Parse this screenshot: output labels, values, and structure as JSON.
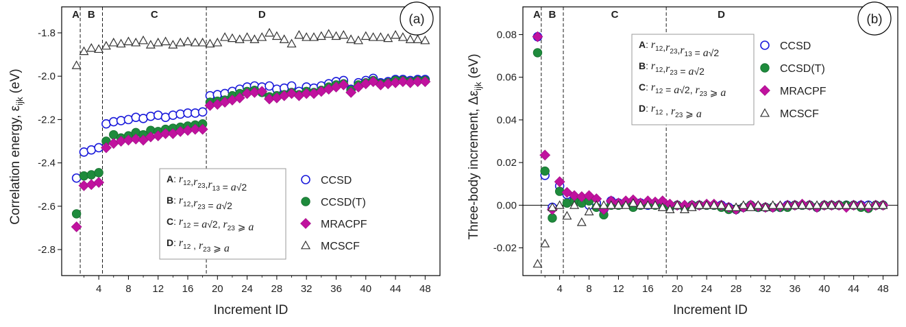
{
  "colors": {
    "CCSD": "#1a1adb",
    "CCSD(T)": "#1e8b3c",
    "MRACPF": "#c0129e",
    "MCSCF": "#333333"
  },
  "chart_data": [
    {
      "type": "scatter",
      "badge": "(a)",
      "xlabel": "Increment ID",
      "ylabel": "Correlation energy, ε",
      "ylabel_sub": "ijk",
      "ylabel_unit": " (eV)",
      "xlim": [
        -1,
        50
      ],
      "ylim": [
        -2.92,
        -1.68
      ],
      "xticks": [
        4,
        8,
        12,
        16,
        20,
        24,
        28,
        32,
        36,
        40,
        44,
        48
      ],
      "yticks": [
        -1.8,
        -2.0,
        -2.2,
        -2.4,
        -2.6,
        -2.8
      ],
      "ytick_labels": [
        "-1.8",
        "-2.0",
        "-2.2",
        "-2.4",
        "-2.6",
        "-2.8"
      ],
      "regions": [
        {
          "label": "A",
          "x": 0.9
        },
        {
          "label": "B",
          "x": 3.0
        },
        {
          "label": "C",
          "x": 11.5
        },
        {
          "label": "D",
          "x": 26.0
        }
      ],
      "dividers": [
        1.5,
        4.5,
        18.5
      ],
      "legend": [
        "CCSD",
        "CCSD(T)",
        "MRACPF",
        "MCSCF"
      ],
      "box_lines": [
        {
          "bold": "A",
          "rest": ": r12,r23,r13 = a√2"
        },
        {
          "bold": "B",
          "rest": ": r12,r23 = a√2"
        },
        {
          "bold": "C",
          "rest": ": r12 = a√2, r23 ⩾ a"
        },
        {
          "bold": "D",
          "rest": ": r12 , r23 ⩾ a"
        }
      ],
      "series": [
        {
          "name": "CCSD",
          "marker": "open-circle",
          "x": [
            1,
            2,
            3,
            4,
            5,
            6,
            7,
            8,
            9,
            10,
            11,
            12,
            13,
            14,
            15,
            16,
            17,
            18,
            19,
            20,
            21,
            22,
            23,
            24,
            25,
            26,
            27,
            28,
            29,
            30,
            31,
            32,
            33,
            34,
            35,
            36,
            37,
            38,
            39,
            40,
            41,
            42,
            43,
            44,
            45,
            46,
            47,
            48
          ],
          "y": [
            -2.47,
            -2.35,
            -2.34,
            -2.33,
            -2.22,
            -2.21,
            -2.205,
            -2.2,
            -2.19,
            -2.195,
            -2.185,
            -2.18,
            -2.19,
            -2.18,
            -2.175,
            -2.17,
            -2.17,
            -2.165,
            -2.09,
            -2.085,
            -2.08,
            -2.07,
            -2.06,
            -2.05,
            -2.045,
            -2.05,
            -2.045,
            -2.06,
            -2.055,
            -2.045,
            -2.07,
            -2.05,
            -2.055,
            -2.045,
            -2.035,
            -2.025,
            -2.02,
            -2.06,
            -2.03,
            -2.02,
            -2.01,
            -2.03,
            -2.025,
            -2.015,
            -2.015,
            -2.02,
            -2.015,
            -2.015
          ]
        },
        {
          "name": "CCSD(T)",
          "marker": "filled-circle",
          "x": [
            1,
            2,
            3,
            4,
            5,
            6,
            7,
            8,
            9,
            10,
            11,
            12,
            13,
            14,
            15,
            16,
            17,
            18,
            19,
            20,
            21,
            22,
            23,
            24,
            25,
            26,
            27,
            28,
            29,
            30,
            31,
            32,
            33,
            34,
            35,
            36,
            37,
            38,
            39,
            40,
            41,
            42,
            43,
            44,
            45,
            46,
            47,
            48
          ],
          "y": [
            -2.635,
            -2.46,
            -2.455,
            -2.445,
            -2.3,
            -2.27,
            -2.285,
            -2.275,
            -2.26,
            -2.27,
            -2.25,
            -2.255,
            -2.245,
            -2.24,
            -2.235,
            -2.23,
            -2.225,
            -2.22,
            -2.12,
            -2.115,
            -2.11,
            -2.09,
            -2.08,
            -2.07,
            -2.065,
            -2.075,
            -2.095,
            -2.09,
            -2.085,
            -2.075,
            -2.085,
            -2.07,
            -2.075,
            -2.065,
            -2.05,
            -2.04,
            -2.035,
            -2.065,
            -2.04,
            -2.03,
            -2.02,
            -2.035,
            -2.03,
            -2.02,
            -2.02,
            -2.025,
            -2.02,
            -2.02
          ]
        },
        {
          "name": "MRACPF",
          "marker": "diamond",
          "x": [
            1,
            2,
            3,
            4,
            5,
            6,
            7,
            8,
            9,
            10,
            11,
            12,
            13,
            14,
            15,
            16,
            17,
            18,
            19,
            20,
            21,
            22,
            23,
            24,
            25,
            26,
            27,
            28,
            29,
            30,
            31,
            32,
            33,
            34,
            35,
            36,
            37,
            38,
            39,
            40,
            41,
            42,
            43,
            44,
            45,
            46,
            47,
            48
          ],
          "y": [
            -2.695,
            -2.505,
            -2.5,
            -2.49,
            -2.33,
            -2.31,
            -2.3,
            -2.295,
            -2.29,
            -2.295,
            -2.28,
            -2.275,
            -2.265,
            -2.265,
            -2.255,
            -2.25,
            -2.245,
            -2.245,
            -2.135,
            -2.13,
            -2.12,
            -2.11,
            -2.1,
            -2.08,
            -2.075,
            -2.07,
            -2.105,
            -2.1,
            -2.09,
            -2.08,
            -2.09,
            -2.08,
            -2.08,
            -2.07,
            -2.06,
            -2.05,
            -2.04,
            -2.075,
            -2.05,
            -2.035,
            -2.025,
            -2.04,
            -2.035,
            -2.03,
            -2.025,
            -2.03,
            -2.025,
            -2.025
          ]
        },
        {
          "name": "MCSCF",
          "marker": "open-triangle",
          "x": [
            1,
            2,
            3,
            4,
            5,
            6,
            7,
            8,
            9,
            10,
            11,
            12,
            13,
            14,
            15,
            16,
            17,
            18,
            19,
            20,
            21,
            22,
            23,
            24,
            25,
            26,
            27,
            28,
            29,
            30,
            31,
            32,
            33,
            34,
            35,
            36,
            37,
            38,
            39,
            40,
            41,
            42,
            43,
            44,
            45,
            46,
            47,
            48
          ],
          "y": [
            -1.95,
            -1.885,
            -1.87,
            -1.875,
            -1.86,
            -1.845,
            -1.85,
            -1.84,
            -1.845,
            -1.835,
            -1.855,
            -1.845,
            -1.84,
            -1.855,
            -1.845,
            -1.84,
            -1.845,
            -1.845,
            -1.85,
            -1.845,
            -1.82,
            -1.825,
            -1.83,
            -1.82,
            -1.83,
            -1.82,
            -1.8,
            -1.815,
            -1.83,
            -1.85,
            -1.81,
            -1.82,
            -1.82,
            -1.815,
            -1.805,
            -1.815,
            -1.81,
            -1.83,
            -1.835,
            -1.815,
            -1.82,
            -1.82,
            -1.825,
            -1.81,
            -1.82,
            -1.83,
            -1.83,
            -1.835
          ]
        }
      ]
    },
    {
      "type": "scatter",
      "badge": "(b)",
      "xlabel": "Increment ID",
      "ylabel": "Three-body increment, Δε",
      "ylabel_sub": "ijk",
      "ylabel_unit": " (eV)",
      "xlim": [
        -1,
        50
      ],
      "ylim": [
        -0.033,
        0.093
      ],
      "xticks": [
        4,
        8,
        12,
        16,
        20,
        24,
        28,
        32,
        36,
        40,
        44,
        48
      ],
      "yticks": [
        0.08,
        0.06,
        0.04,
        0.02,
        0.0,
        -0.02
      ],
      "ytick_labels": [
        "0.08",
        "0.06",
        "0.04",
        "0.02",
        "0.00",
        "-0.02"
      ],
      "regions": [
        {
          "label": "A",
          "x": 0.9
        },
        {
          "label": "B",
          "x": 3.0
        },
        {
          "label": "C",
          "x": 11.5
        },
        {
          "label": "D",
          "x": 26.0
        }
      ],
      "dividers": [
        1.5,
        4.5,
        18.5
      ],
      "zero_line": 0.0,
      "legend": [
        "CCSD",
        "CCSD(T)",
        "MRACPF",
        "MCSCF"
      ],
      "box_lines": [
        {
          "bold": "A",
          "rest": ": r12,r23,r13 = a√2"
        },
        {
          "bold": "B",
          "rest": ": r12,r23 = a√2"
        },
        {
          "bold": "C",
          "rest": ": r12 = a√2, r23 ⩾ a"
        },
        {
          "bold": "D",
          "rest": ": r12 , r23 ⩾ a"
        }
      ],
      "series": [
        {
          "name": "CCSD",
          "marker": "open-circle",
          "x": [
            1,
            2,
            3,
            4,
            5,
            6,
            7,
            8,
            9,
            10,
            11,
            12,
            13,
            14,
            15,
            16,
            17,
            18,
            19,
            20,
            21,
            22,
            23,
            24,
            25,
            26,
            27,
            28,
            29,
            30,
            31,
            32,
            33,
            34,
            35,
            36,
            37,
            38,
            39,
            40,
            41,
            42,
            43,
            44,
            45,
            46,
            47,
            48
          ],
          "y": [
            0.079,
            0.014,
            -0.001,
            0.009,
            0.005,
            0.003,
            0.002,
            0.0,
            0.001,
            -0.002,
            0.002,
            0.001,
            0.001,
            0.0,
            0.001,
            0.0,
            0.001,
            0.0,
            -0.001,
            0.0,
            -0.001,
            0.0,
            0.0,
            0.0,
            0.0,
            0.0,
            -0.001,
            -0.002,
            -0.001,
            0.0,
            -0.001,
            -0.001,
            -0.001,
            -0.001,
            0.0,
            0.0,
            0.0,
            0.0,
            -0.001,
            0.0,
            0.0,
            0.0,
            0.0,
            0.0,
            0.0,
            0.0,
            0.0,
            0.0
          ]
        },
        {
          "name": "CCSD(T)",
          "marker": "filled-circle",
          "x": [
            1,
            2,
            3,
            4,
            5,
            6,
            7,
            8,
            9,
            10,
            11,
            12,
            13,
            14,
            15,
            16,
            17,
            18,
            19,
            20,
            21,
            22,
            23,
            24,
            25,
            26,
            27,
            28,
            29,
            30,
            31,
            32,
            33,
            34,
            35,
            36,
            37,
            38,
            39,
            40,
            41,
            42,
            43,
            44,
            45,
            46,
            47,
            48
          ],
          "y": [
            0.0715,
            0.016,
            -0.006,
            0.0065,
            0.001,
            0.002,
            0.001,
            0.002,
            -0.001,
            -0.0045,
            0.0,
            0.0,
            0.001,
            -0.001,
            0.0,
            0.001,
            0.0,
            0.001,
            -0.001,
            0.0,
            -0.001,
            0.0,
            0.0,
            0.0,
            0.0,
            -0.001,
            -0.002,
            -0.002,
            -0.001,
            0.0,
            -0.001,
            -0.001,
            -0.001,
            -0.001,
            -0.001,
            0.0,
            0.0,
            0.0,
            -0.001,
            0.0,
            0.0,
            0.0,
            0.0,
            0.0,
            -0.001,
            -0.0015,
            0.0,
            0.0
          ]
        },
        {
          "name": "MRACPF",
          "marker": "diamond",
          "x": [
            1,
            2,
            3,
            4,
            5,
            6,
            7,
            8,
            9,
            10,
            11,
            12,
            13,
            14,
            15,
            16,
            17,
            18,
            19,
            20,
            21,
            22,
            23,
            24,
            25,
            26,
            27,
            28,
            29,
            30,
            31,
            32,
            33,
            34,
            35,
            36,
            37,
            38,
            39,
            40,
            41,
            42,
            43,
            44,
            45,
            46,
            47,
            48
          ],
          "y": [
            0.079,
            0.0235,
            -0.002,
            0.011,
            0.006,
            0.0045,
            0.004,
            0.0045,
            0.003,
            -0.002,
            0.002,
            0.001,
            0.002,
            0.0025,
            0.001,
            0.002,
            0.0015,
            0.002,
            0.0005,
            0.0,
            0.0,
            0.0,
            0.0,
            0.0005,
            0.0005,
            0.0,
            -0.001,
            -0.002,
            -0.001,
            0.0,
            -0.0005,
            -0.001,
            -0.001,
            -0.0005,
            0.0,
            0.0,
            0.0005,
            0.0,
            -0.001,
            0.0,
            0.0,
            0.0,
            -0.001,
            0.0,
            0.0,
            -0.001,
            0.0,
            0.0
          ]
        },
        {
          "name": "MCSCF",
          "marker": "open-triangle",
          "x": [
            1,
            2,
            3,
            4,
            5,
            6,
            7,
            8,
            9,
            10,
            11,
            12,
            13,
            14,
            15,
            16,
            17,
            18,
            19,
            20,
            21,
            22,
            23,
            24,
            25,
            26,
            27,
            28,
            29,
            30,
            31,
            32,
            33,
            34,
            35,
            36,
            37,
            38,
            39,
            40,
            41,
            42,
            43,
            44,
            45,
            46,
            47,
            48
          ],
          "y": [
            -0.0275,
            -0.018,
            -0.001,
            0.0,
            -0.005,
            0.0,
            -0.008,
            -0.003,
            0.0,
            0.0,
            0.0,
            0.0,
            0.0,
            0.001,
            0.0,
            0.0,
            0.0,
            -0.001,
            -0.002,
            0.0,
            -0.002,
            -0.001,
            0.0,
            0.0,
            0.0,
            0.0,
            -0.001,
            -0.001,
            0.0,
            -0.001,
            0.0,
            -0.001,
            0.0,
            0.0,
            0.0,
            0.0,
            0.0,
            0.0,
            0.0,
            0.0,
            0.0,
            0.0,
            0.0,
            0.0,
            0.0,
            0.0,
            0.0,
            0.0
          ]
        }
      ]
    }
  ]
}
